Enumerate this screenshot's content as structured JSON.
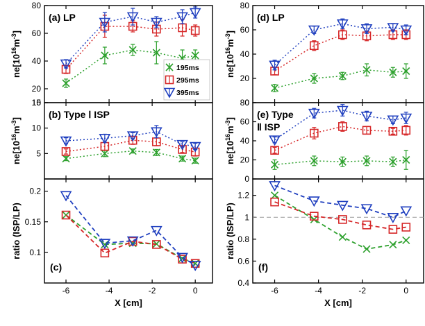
{
  "chart_data": [
    {
      "id": "a",
      "type": "line",
      "title": "(a) LP",
      "ylabel": "ne[10^16 m^-3]",
      "ylim": [
        10,
        80
      ],
      "yticks": [
        "10",
        "20",
        "40",
        "60",
        "80"
      ],
      "xlim": [
        -7,
        0.8
      ],
      "xticks": [
        "-6",
        "-4",
        "-2",
        "0"
      ],
      "legend": {
        "position": "lower-right",
        "entries": [
          "195ms",
          "295ms",
          "395ms"
        ]
      },
      "series": [
        {
          "name": "195ms",
          "color": "#2ca02c",
          "marker": "x",
          "linestyle": "dotted",
          "x": [
            -6,
            -4.2,
            -2.9,
            -1.8,
            -0.6,
            0
          ],
          "y": [
            24,
            44,
            48,
            46,
            42,
            44
          ],
          "err": [
            3,
            6,
            4,
            8,
            6,
            4
          ]
        },
        {
          "name": "295ms",
          "color": "#d62728",
          "marker": "square",
          "linestyle": "dotted",
          "x": [
            -6,
            -4.2,
            -2.9,
            -1.8,
            -0.6,
            0
          ],
          "y": [
            34,
            65,
            65,
            63,
            64,
            62
          ],
          "err": [
            3,
            8,
            4,
            5,
            6,
            4
          ]
        },
        {
          "name": "395ms",
          "color": "#1f3fbf",
          "marker": "triangle-down",
          "linestyle": "dotted",
          "x": [
            -6,
            -4.2,
            -2.9,
            -1.8,
            -0.6,
            0
          ],
          "y": [
            38,
            68,
            72,
            68,
            72,
            75
          ],
          "err": [
            3,
            7,
            6,
            4,
            5,
            4
          ]
        }
      ]
    },
    {
      "id": "b",
      "type": "line",
      "title": "(b) Type Ⅰ ISP",
      "ylabel": "ne[10^16 m^-3]",
      "ylim": [
        0,
        15
      ],
      "yticks": [
        "5",
        "10",
        "15"
      ],
      "xlim": [
        -7,
        0.8
      ],
      "xticks": [
        "-6",
        "-4",
        "-2",
        "0"
      ],
      "series": [
        {
          "name": "195ms",
          "color": "#2ca02c",
          "marker": "x",
          "linestyle": "dotted",
          "x": [
            -6,
            -4.2,
            -2.9,
            -1.8,
            -0.6,
            0
          ],
          "y": [
            4.0,
            5.0,
            5.5,
            5.2,
            4.0,
            3.6
          ],
          "err": [
            0.4,
            0.6,
            0.4,
            0.6,
            0.5,
            0.5
          ]
        },
        {
          "name": "295ms",
          "color": "#d62728",
          "marker": "square",
          "linestyle": "dotted",
          "x": [
            -6,
            -4.2,
            -2.9,
            -1.8,
            -0.6,
            0
          ],
          "y": [
            5.4,
            6.4,
            7.6,
            7.3,
            5.8,
            5.3
          ],
          "err": [
            0.5,
            0.8,
            0.8,
            0.8,
            0.6,
            0.8
          ]
        },
        {
          "name": "395ms",
          "color": "#1f3fbf",
          "marker": "triangle-down",
          "linestyle": "dotted",
          "x": [
            -6,
            -4.2,
            -2.9,
            -1.8,
            -0.6,
            0
          ],
          "y": [
            7.5,
            8.0,
            8.5,
            9.3,
            6.8,
            6.4
          ],
          "err": [
            0.6,
            0.8,
            0.6,
            1.2,
            0.5,
            0.6
          ]
        }
      ]
    },
    {
      "id": "c",
      "type": "line",
      "title": "(c)",
      "ylabel": "ratio (ISP/LP)",
      "ylim": [
        0.05,
        0.22
      ],
      "yticks": [
        "0.1",
        "0.15",
        "0.2"
      ],
      "xlim": [
        -7,
        0.8
      ],
      "xticks": [
        "-6",
        "-4",
        "-2",
        "0"
      ],
      "xlabel": "X [cm]",
      "series": [
        {
          "name": "195ms",
          "color": "#2ca02c",
          "marker": "x",
          "linestyle": "dashed",
          "x": [
            -6,
            -4.2,
            -2.9,
            -1.8,
            -0.6,
            0
          ],
          "y": [
            0.161,
            0.113,
            0.115,
            0.114,
            0.09,
            0.082
          ]
        },
        {
          "name": "295ms",
          "color": "#d62728",
          "marker": "square",
          "linestyle": "dashed",
          "x": [
            -6,
            -4.2,
            -2.9,
            -1.8,
            -0.6,
            0
          ],
          "y": [
            0.161,
            0.099,
            0.118,
            0.113,
            0.089,
            0.082
          ]
        },
        {
          "name": "395ms",
          "color": "#1f3fbf",
          "marker": "triangle-down",
          "linestyle": "dashed",
          "x": [
            -6,
            -4.2,
            -2.9,
            -1.8,
            -0.6,
            0
          ],
          "y": [
            0.193,
            0.115,
            0.119,
            0.136,
            0.092,
            0.079
          ]
        }
      ]
    },
    {
      "id": "d",
      "type": "line",
      "title": "(d) LP",
      "ylabel": "ne[10^16 m^-3]",
      "ylim": [
        0,
        80
      ],
      "yticks": [
        "0",
        "20",
        "40",
        "60",
        "80"
      ],
      "xlim": [
        -7,
        0.8
      ],
      "xticks": [
        "-6",
        "-4",
        "-2",
        "0"
      ],
      "series": [
        {
          "name": "195ms",
          "color": "#2ca02c",
          "marker": "x",
          "linestyle": "dotted",
          "x": [
            -6,
            -4.2,
            -2.9,
            -1.8,
            -0.6,
            0
          ],
          "y": [
            12,
            20,
            22,
            27,
            25,
            26
          ],
          "err": [
            3,
            4,
            3,
            5,
            4,
            6
          ]
        },
        {
          "name": "295ms",
          "color": "#d62728",
          "marker": "square",
          "linestyle": "dotted",
          "x": [
            -6,
            -4.2,
            -2.9,
            -1.8,
            -0.6,
            0
          ],
          "y": [
            26,
            47,
            56,
            55,
            56,
            56
          ],
          "err": [
            3,
            4,
            4,
            4,
            4,
            4
          ]
        },
        {
          "name": "395ms",
          "color": "#1f3fbf",
          "marker": "triangle-down",
          "linestyle": "dotted",
          "x": [
            -6,
            -4.2,
            -2.9,
            -1.8,
            -0.6,
            0
          ],
          "y": [
            31,
            60,
            65,
            61,
            62,
            60
          ],
          "err": [
            4,
            3,
            4,
            4,
            3,
            4
          ]
        }
      ]
    },
    {
      "id": "e",
      "type": "line",
      "title": "(e) Type Ⅱ ISP",
      "ylabel": "ne[10^16 m^-3]",
      "ylim": [
        0,
        80
      ],
      "yticks": [
        "0",
        "20",
        "40",
        "60",
        "80"
      ],
      "xlim": [
        -7,
        0.8
      ],
      "xticks": [
        "-6",
        "-4",
        "-2",
        "0"
      ],
      "series": [
        {
          "name": "195ms",
          "color": "#2ca02c",
          "marker": "x",
          "linestyle": "dotted",
          "x": [
            -6,
            -4.2,
            -2.9,
            -1.8,
            -0.6,
            0
          ],
          "y": [
            15,
            19,
            18,
            19,
            18,
            20
          ],
          "err": [
            5,
            5,
            5,
            5,
            5,
            10
          ]
        },
        {
          "name": "295ms",
          "color": "#d62728",
          "marker": "square",
          "linestyle": "dotted",
          "x": [
            -6,
            -4.2,
            -2.9,
            -1.8,
            -0.6,
            0
          ],
          "y": [
            30,
            48,
            55,
            51,
            50,
            51
          ],
          "err": [
            3,
            6,
            5,
            4,
            3,
            5
          ]
        },
        {
          "name": "395ms",
          "color": "#1f3fbf",
          "marker": "triangle-down",
          "linestyle": "dotted",
          "x": [
            -6,
            -4.2,
            -2.9,
            -1.8,
            -0.6,
            0
          ],
          "y": [
            41,
            69,
            72,
            66,
            62,
            64
          ],
          "err": [
            3,
            5,
            6,
            5,
            4,
            6
          ]
        }
      ]
    },
    {
      "id": "f",
      "type": "line",
      "title": "(f)",
      "ylabel": "ratio (ISP/LP)",
      "ylim": [
        0.4,
        1.35
      ],
      "yticks": [
        "0.4",
        "0.6",
        "0.8",
        "1",
        "1.2"
      ],
      "xlim": [
        -7,
        0.8
      ],
      "xticks": [
        "-6",
        "-4",
        "-2",
        "0"
      ],
      "xlabel": "X [cm]",
      "reference_line": 1.0,
      "series": [
        {
          "name": "195ms",
          "color": "#2ca02c",
          "marker": "x",
          "linestyle": "dashed",
          "x": [
            -6,
            -4.2,
            -2.9,
            -1.8,
            -0.6,
            0
          ],
          "y": [
            1.2,
            0.98,
            0.82,
            0.71,
            0.75,
            0.79
          ]
        },
        {
          "name": "295ms",
          "color": "#d62728",
          "marker": "square",
          "linestyle": "dashed",
          "x": [
            -6,
            -4.2,
            -2.9,
            -1.8,
            -0.6,
            0
          ],
          "y": [
            1.14,
            1.01,
            0.98,
            0.93,
            0.89,
            0.91
          ]
        },
        {
          "name": "395ms",
          "color": "#1f3fbf",
          "marker": "triangle-down",
          "linestyle": "dashed",
          "x": [
            -6,
            -4.2,
            -2.9,
            -1.8,
            -0.6,
            0
          ],
          "y": [
            1.29,
            1.15,
            1.11,
            1.08,
            1.0,
            1.06
          ]
        }
      ]
    }
  ]
}
